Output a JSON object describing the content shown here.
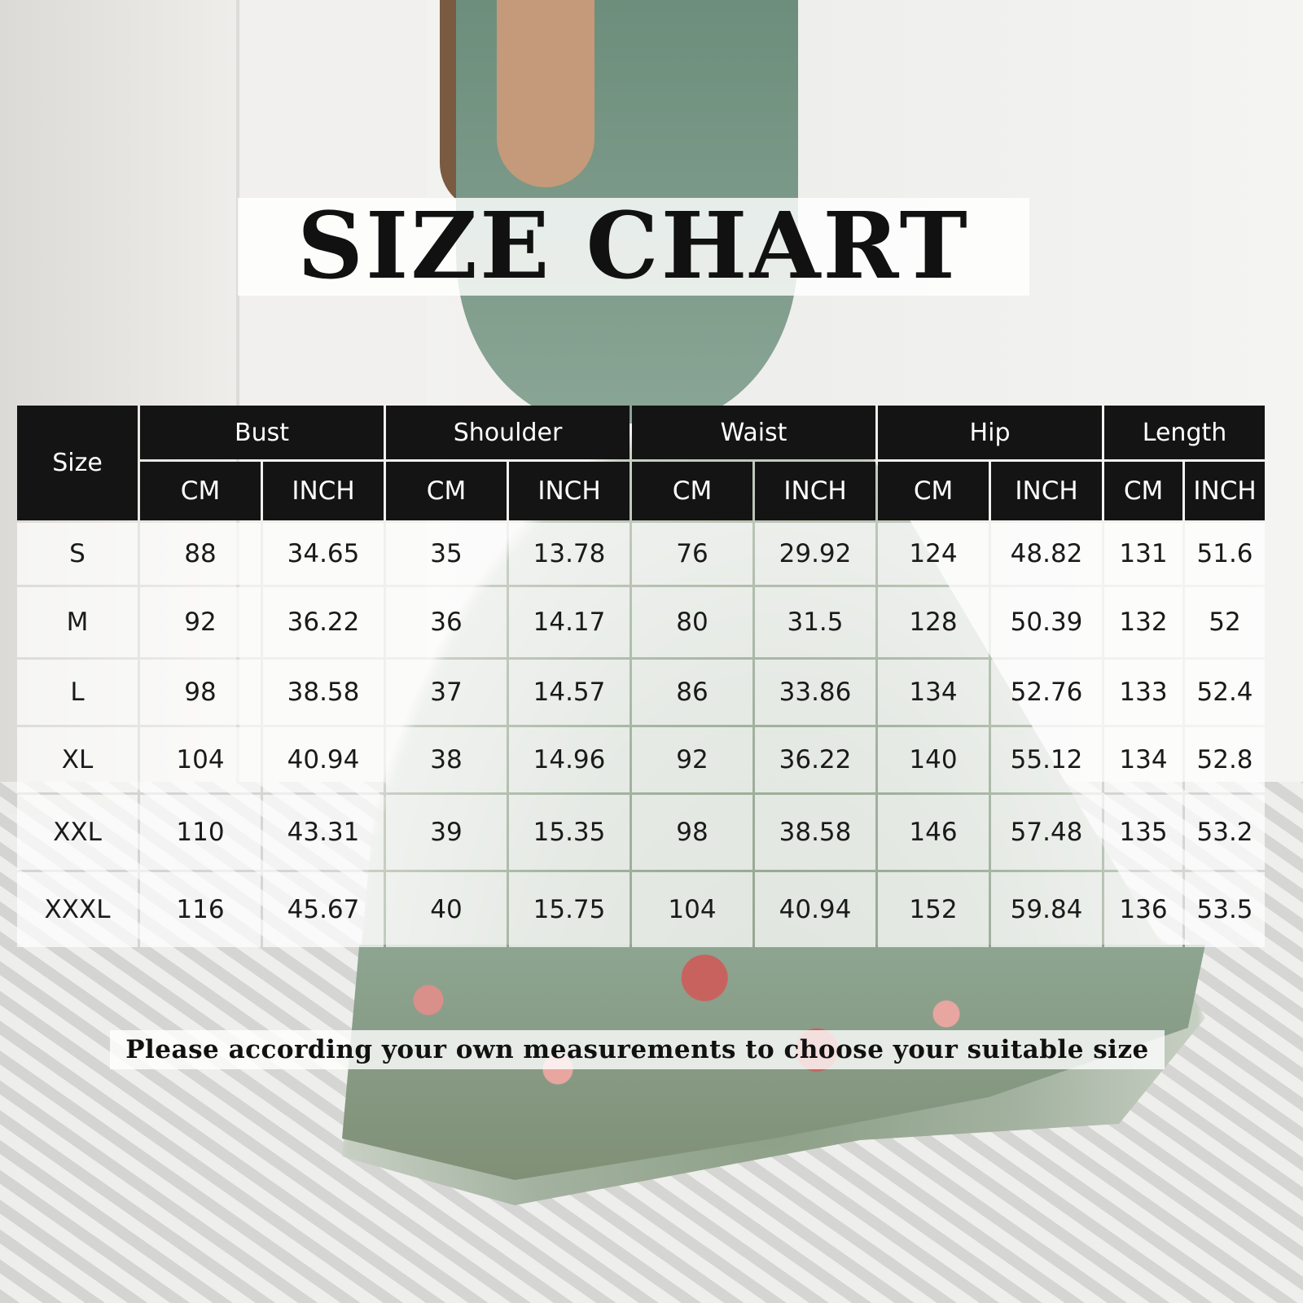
{
  "title": "SIZE CHART",
  "footer": "Please according your own measurements to choose your suitable size",
  "table": {
    "size_header": "Size",
    "groups": [
      "Bust",
      "Shoulder",
      "Waist",
      "Hip",
      "Length"
    ],
    "units": [
      "CM",
      "INCH"
    ],
    "rows": [
      [
        "S",
        "88",
        "34.65",
        "35",
        "13.78",
        "76",
        "29.92",
        "124",
        "48.82",
        "131",
        "51.6"
      ],
      [
        "M",
        "92",
        "36.22",
        "36",
        "14.17",
        "80",
        "31.5",
        "128",
        "50.39",
        "132",
        "52"
      ],
      [
        "L",
        "98",
        "38.58",
        "37",
        "14.57",
        "86",
        "33.86",
        "134",
        "52.76",
        "133",
        "52.4"
      ],
      [
        "XL",
        "104",
        "40.94",
        "38",
        "14.96",
        "92",
        "36.22",
        "140",
        "55.12",
        "134",
        "52.8"
      ],
      [
        "XXL",
        "110",
        "43.31",
        "39",
        "15.35",
        "98",
        "38.58",
        "146",
        "57.48",
        "135",
        "53.2"
      ],
      [
        "XXXL",
        "116",
        "45.67",
        "40",
        "15.75",
        "104",
        "40.94",
        "152",
        "59.84",
        "136",
        "53.5"
      ]
    ]
  }
}
